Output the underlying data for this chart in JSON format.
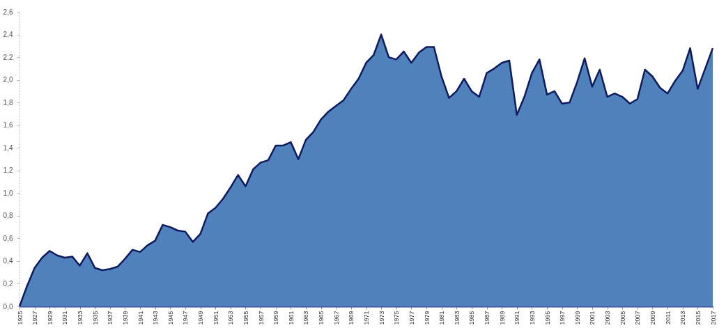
{
  "chart_data": {
    "type": "area",
    "x": [
      1925,
      1926,
      1927,
      1928,
      1929,
      1930,
      1931,
      1932,
      1933,
      1934,
      1935,
      1936,
      1937,
      1938,
      1939,
      1940,
      1941,
      1942,
      1943,
      1944,
      1945,
      1946,
      1947,
      1948,
      1949,
      1950,
      1951,
      1952,
      1953,
      1954,
      1955,
      1956,
      1957,
      1958,
      1959,
      1960,
      1961,
      1962,
      1963,
      1964,
      1965,
      1966,
      1967,
      1968,
      1969,
      1970,
      1971,
      1972,
      1973,
      1974,
      1975,
      1976,
      1977,
      1978,
      1979,
      1980,
      1981,
      1982,
      1983,
      1984,
      1985,
      1986,
      1987,
      1988,
      1989,
      1990,
      1991,
      1992,
      1993,
      1994,
      1995,
      1996,
      1997,
      1998,
      1999,
      2000,
      2001,
      2002,
      2003,
      2004,
      2005,
      2006,
      2007,
      2008,
      2009,
      2010,
      2011,
      2012,
      2013,
      2014,
      2015,
      2016,
      2017
    ],
    "series": [
      {
        "color": "#4f81bd",
        "values": [
          0.0,
          0.18,
          0.34,
          0.43,
          0.49,
          0.45,
          0.43,
          0.44,
          0.36,
          0.47,
          0.34,
          0.32,
          0.33,
          0.35,
          0.42,
          0.5,
          0.48,
          0.54,
          0.58,
          0.72,
          0.7,
          0.67,
          0.66,
          0.57,
          0.64,
          0.82,
          0.87,
          0.95,
          1.05,
          1.16,
          1.06,
          1.21,
          1.27,
          1.29,
          1.42,
          1.42,
          1.45,
          1.3,
          1.47,
          1.54,
          1.65,
          1.72,
          1.77,
          1.82,
          1.92,
          2.01,
          2.15,
          2.22,
          2.4,
          2.2,
          2.18,
          2.25,
          2.15,
          2.24,
          2.29,
          2.29,
          2.03,
          1.84,
          1.9,
          2.01,
          1.9,
          1.85,
          2.06,
          2.1,
          2.15,
          2.17,
          1.69,
          1.85,
          2.06,
          2.18,
          1.87,
          1.9,
          1.79,
          1.8,
          1.98,
          2.19,
          1.94,
          2.09,
          1.85,
          1.88,
          1.85,
          1.79,
          1.83,
          2.09,
          2.03,
          1.93,
          1.88,
          1.99,
          2.08,
          2.28,
          1.92,
          2.1,
          2.28
        ]
      }
    ],
    "xlim": [
      1925,
      2017
    ],
    "xticks": [
      1925,
      1927,
      1929,
      1931,
      1933,
      1935,
      1937,
      1939,
      1941,
      1943,
      1945,
      1947,
      1949,
      1951,
      1953,
      1955,
      1957,
      1959,
      1961,
      1963,
      1965,
      1967,
      1969,
      1971,
      1973,
      1975,
      1977,
      1979,
      1981,
      1983,
      1985,
      1987,
      1989,
      1991,
      1993,
      1995,
      1997,
      1999,
      2001,
      2003,
      2005,
      2007,
      2009,
      2011,
      2013,
      2015,
      2017
    ],
    "ylim": [
      0,
      2.6
    ],
    "yticks": [
      {
        "value": 0,
        "label": "0,0"
      },
      {
        "value": 0.2,
        "label": "0,2"
      },
      {
        "value": 0.4,
        "label": "0,4"
      },
      {
        "value": 0.6,
        "label": "0,6"
      },
      {
        "value": 0.8,
        "label": "0,8"
      },
      {
        "value": 1.0,
        "label": "1,0"
      },
      {
        "value": 1.2,
        "label": "1,2"
      },
      {
        "value": 1.4,
        "label": "1,4"
      },
      {
        "value": 1.6,
        "label": "1,6"
      },
      {
        "value": 1.8,
        "label": "1,8"
      },
      {
        "value": 2.0,
        "label": "2,0"
      },
      {
        "value": 2.2,
        "label": "2,2"
      },
      {
        "value": 2.4,
        "label": "2,4"
      },
      {
        "value": 2.6,
        "label": "2,6"
      }
    ],
    "grid": false
  }
}
